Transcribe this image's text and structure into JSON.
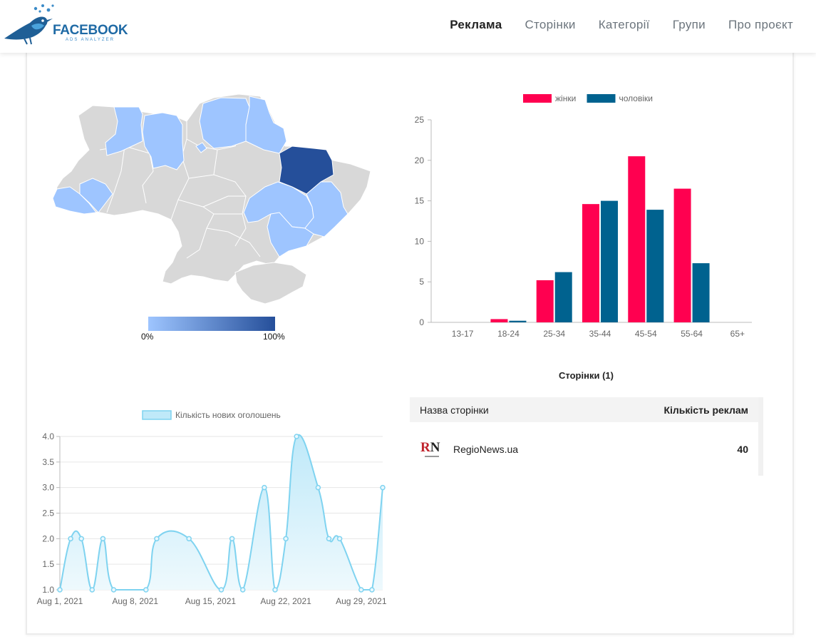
{
  "brand": {
    "name": "FACEBOOK",
    "subtitle": "ADS ANALYZER"
  },
  "nav": {
    "items": [
      {
        "label": "Реклама",
        "active": true
      },
      {
        "label": "Сторінки",
        "active": false
      },
      {
        "label": "Категорії",
        "active": false
      },
      {
        "label": "Групи",
        "active": false
      },
      {
        "label": "Про проєкт",
        "active": false
      }
    ]
  },
  "map": {
    "scale_min_label": "0%",
    "scale_max_label": "100%",
    "colors": {
      "none": "#d8d8d8",
      "low": "#9ec5ff",
      "mid": "#8ab4f0",
      "high": "#254f9a"
    }
  },
  "pages": {
    "title": "Сторінки (1)",
    "columns": [
      "Назва сторінки",
      "Кількість реклам"
    ],
    "rows": [
      {
        "name": "RegioNews.ua",
        "count": "40"
      }
    ]
  },
  "chart_data": [
    {
      "type": "bar",
      "categories": [
        "13-17",
        "18-24",
        "25-34",
        "35-44",
        "45-54",
        "55-64",
        "65+"
      ],
      "series": [
        {
          "name": "жінки",
          "color": "#ff0050",
          "values": [
            0,
            0.4,
            5.2,
            14.6,
            20.5,
            16.5,
            0
          ]
        },
        {
          "name": "чоловіки",
          "color": "#00628f",
          "values": [
            0,
            0.2,
            6.2,
            15,
            13.9,
            7.3,
            0
          ]
        }
      ],
      "ylim": [
        0,
        25
      ],
      "yticks": [
        0,
        5,
        10,
        15,
        20,
        25
      ],
      "legend": "top",
      "grid": false
    },
    {
      "type": "area",
      "series": [
        {
          "name": "Кількість нових оголошень",
          "color": "#7fd3f0",
          "x": [
            "2021-08-01",
            "2021-08-02",
            "2021-08-03",
            "2021-08-04",
            "2021-08-05",
            "2021-08-06",
            "2021-08-09",
            "2021-08-10",
            "2021-08-13",
            "2021-08-16",
            "2021-08-17",
            "2021-08-18",
            "2021-08-20",
            "2021-08-21",
            "2021-08-22",
            "2021-08-23",
            "2021-08-25",
            "2021-08-26",
            "2021-08-27",
            "2021-08-29",
            "2021-08-30",
            "2021-08-31"
          ],
          "values": [
            1,
            2,
            2,
            1,
            2,
            1,
            1,
            2,
            2,
            1,
            2,
            1,
            3,
            1,
            2,
            4,
            3,
            2,
            2,
            1,
            1,
            3
          ]
        }
      ],
      "xticks": [
        "Aug 1, 2021",
        "Aug 8, 2021",
        "Aug 15, 2021",
        "Aug 22, 2021",
        "Aug 29, 2021"
      ],
      "ylim": [
        1,
        4
      ],
      "yticks": [
        "1.0",
        "1.5",
        "2.0",
        "2.5",
        "3.0",
        "3.5",
        "4.0"
      ],
      "legend": "top",
      "grid": true
    }
  ]
}
